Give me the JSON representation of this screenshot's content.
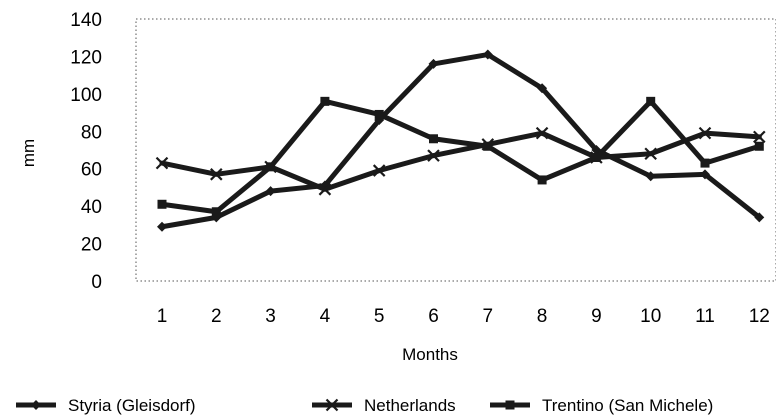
{
  "chart_data": {
    "type": "line",
    "title": "",
    "xlabel": "Months",
    "ylabel": "mm",
    "categories": [
      "1",
      "2",
      "3",
      "4",
      "5",
      "6",
      "7",
      "8",
      "9",
      "10",
      "11",
      "12"
    ],
    "ylim": [
      0,
      140
    ],
    "yticks": [
      "0",
      "20",
      "40",
      "60",
      "80",
      "100",
      "120",
      "140"
    ],
    "grid": false,
    "plot_border": "dotted",
    "legend_position": "bottom",
    "series": [
      {
        "name": "Styria (Gleisdorf)",
        "marker": "diamond",
        "color": "#1a1a1a",
        "values": [
          29,
          34,
          48,
          51,
          86,
          116,
          121,
          103,
          70,
          56,
          57,
          34
        ]
      },
      {
        "name": "Netherlands",
        "marker": "x",
        "color": "#1a1a1a",
        "values": [
          63,
          57,
          61,
          49,
          59,
          67,
          73,
          79,
          66,
          68,
          79,
          77
        ]
      },
      {
        "name": "Trentino (San Michele)",
        "marker": "square",
        "color": "#1a1a1a",
        "values": [
          41,
          37,
          61,
          96,
          89,
          76,
          72,
          54,
          66,
          96,
          63,
          72
        ]
      }
    ]
  }
}
